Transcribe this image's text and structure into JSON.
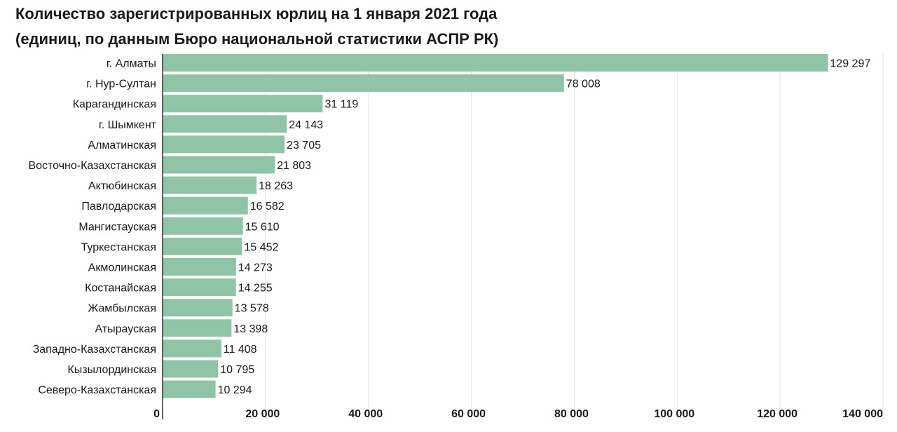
{
  "chart_data": {
    "type": "bar",
    "orientation": "horizontal",
    "title": "Количество зарегистрированных юрлиц на 1 января 2021 года",
    "subtitle": "(единиц, по данным Бюро национальной статистики АСПР РК)",
    "categories": [
      "г. Алматы",
      "г. Нур-Султан",
      "Карагандинская",
      "г. Шымкент",
      "Алматинская",
      "Восточно-Казахстанская",
      "Актюбинская",
      "Павлодарская",
      "Мангистауская",
      "Туркестанская",
      "Акмолинская",
      "Костанайская",
      "Жамбылская",
      "Атырауская",
      "Западно-Казахстанская",
      "Кызылординская",
      "Северо-Казахстанская"
    ],
    "values": [
      129297,
      78008,
      31119,
      24143,
      23705,
      21803,
      18263,
      16582,
      15610,
      15452,
      14273,
      14255,
      13578,
      13398,
      11408,
      10795,
      10294
    ],
    "value_labels": [
      "129 297",
      "78 008",
      "31 119",
      "24 143",
      "23 705",
      "21 803",
      "18 263",
      "16 582",
      "15 610",
      "15 452",
      "14 273",
      "14 255",
      "13 578",
      "13 398",
      "11 408",
      "10 795",
      "10 294"
    ],
    "xlim": [
      0,
      140000
    ],
    "x_ticks": [
      0,
      20000,
      40000,
      60000,
      80000,
      100000,
      120000,
      140000
    ],
    "x_tick_labels": [
      "0",
      "20 000",
      "40 000",
      "60 000",
      "80 000",
      "100 000",
      "120 000",
      "140 000"
    ],
    "grid": true,
    "colors": {
      "bar": "#8fc4a7",
      "grid": "#e3e3e3",
      "axis": "#333333"
    }
  }
}
